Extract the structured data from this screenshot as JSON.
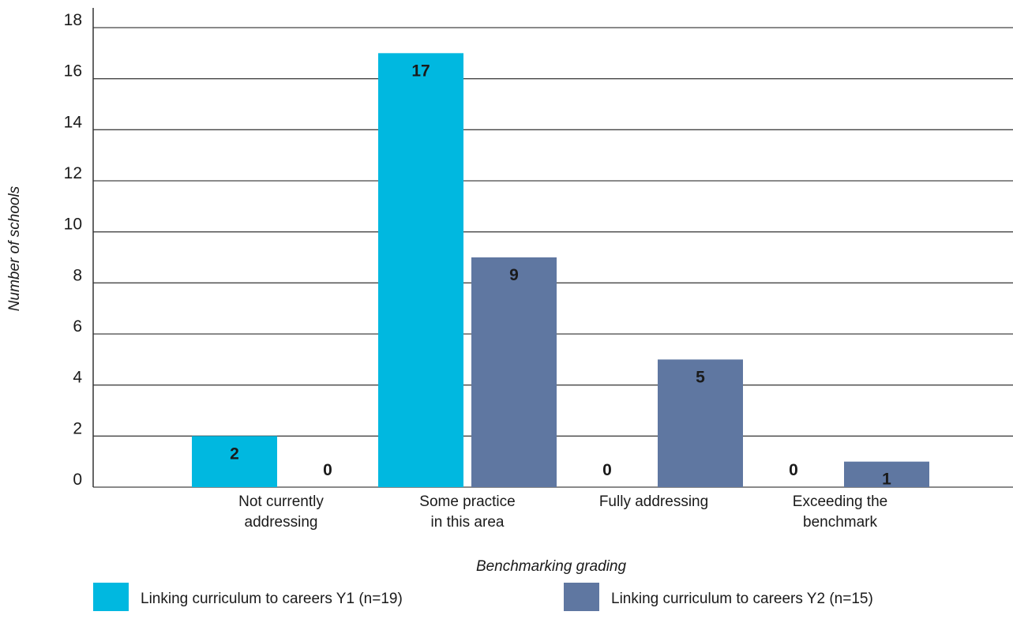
{
  "chart_data": {
    "type": "bar",
    "title": "",
    "xlabel": "Benchmarking grading",
    "ylabel": "Number of schools",
    "ylim": [
      0,
      18
    ],
    "yticks": [
      0,
      2,
      4,
      6,
      8,
      10,
      12,
      14,
      16,
      18
    ],
    "grid": true,
    "legend_position": "bottom",
    "categories": [
      [
        "Not currently",
        "addressing"
      ],
      [
        "Some practice",
        "in this area"
      ],
      [
        "Fully addressing"
      ],
      [
        "Exceeding the",
        "benchmark"
      ]
    ],
    "series": [
      {
        "name": "Linking curriculum to careers Y1 (n=19)",
        "color": "#00b8e0",
        "values": [
          2,
          17,
          0,
          0
        ]
      },
      {
        "name": "Linking curriculum to careers Y2 (n=15)",
        "color": "#5f77a1",
        "values": [
          0,
          9,
          5,
          1
        ]
      }
    ]
  }
}
